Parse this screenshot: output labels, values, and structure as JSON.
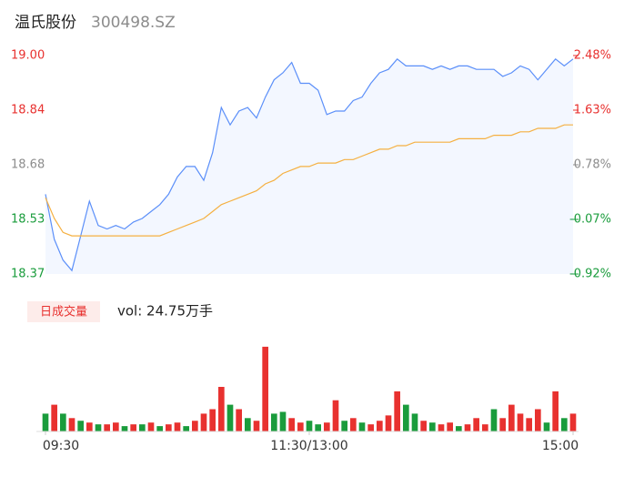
{
  "chart_data": [
    {
      "type": "line",
      "title": "温氏股份",
      "subtitle": "300498.SZ",
      "x": [
        0,
        4,
        8,
        12,
        16,
        20,
        24,
        28,
        32,
        36,
        40,
        44,
        48,
        52,
        56,
        60,
        64,
        68,
        72,
        76,
        80,
        84,
        88,
        92,
        96,
        100,
        104,
        108,
        112,
        116,
        120,
        124,
        128,
        132,
        136,
        140,
        144,
        148,
        152,
        156,
        160,
        164,
        168,
        172,
        176,
        180,
        184,
        188,
        192,
        196,
        200,
        204,
        208,
        212,
        216,
        220,
        224,
        228,
        232,
        236,
        240
      ],
      "xlim": [
        0,
        240
      ],
      "ylim": [
        18.37,
        19.0
      ],
      "yticks": [
        18.37,
        {
          "value": 18.5275,
          "label": "18.53"
        },
        {
          "value": 18.685,
          "label": "18.68"
        },
        {
          "value": 18.8425,
          "label": "18.84"
        },
        {
          "value": 19,
          "label": "19.00"
        }
      ],
      "ytick_colors": [
        "#1a9c3c",
        "#1a9c3c",
        "#8c8c8c",
        "#e8312f",
        "#e8312f"
      ],
      "y2lim": [
        -0.92,
        2.48
      ],
      "y2ticks": [
        {
          "value": -0.92,
          "label": "-0.92%"
        },
        {
          "value": -0.07,
          "label": "-0.07%"
        },
        {
          "value": 0.78,
          "label": "0.78%"
        },
        {
          "value": 1.63,
          "label": "1.63%"
        },
        {
          "value": 2.48,
          "label": "2.48%"
        }
      ],
      "grid": false,
      "series": [
        {
          "color": "#5b8ff9",
          "fill": true,
          "values": [
            18.6,
            18.47,
            18.41,
            18.38,
            18.48,
            18.58,
            18.51,
            18.5,
            18.51,
            18.5,
            18.52,
            18.53,
            18.55,
            18.57,
            18.6,
            18.65,
            18.68,
            18.68,
            18.64,
            18.72,
            18.85,
            18.8,
            18.84,
            18.85,
            18.82,
            18.88,
            18.93,
            18.95,
            18.98,
            18.92,
            18.92,
            18.9,
            18.83,
            18.84,
            18.84,
            18.87,
            18.88,
            18.92,
            18.95,
            18.96,
            18.99,
            18.97,
            18.97,
            18.97,
            18.96,
            18.97,
            18.96,
            18.97,
            18.97,
            18.96,
            18.96,
            18.96,
            18.94,
            18.95,
            18.97,
            18.96,
            18.93,
            18.96,
            18.99,
            18.97,
            18.99
          ]
        },
        {
          "color": "#f5b041",
          "fill": false,
          "values": [
            18.59,
            18.53,
            18.49,
            18.48,
            18.48,
            18.48,
            18.48,
            18.48,
            18.48,
            18.48,
            18.48,
            18.48,
            18.48,
            18.48,
            18.49,
            18.5,
            18.51,
            18.52,
            18.53,
            18.55,
            18.57,
            18.58,
            18.59,
            18.6,
            18.61,
            18.63,
            18.64,
            18.66,
            18.67,
            18.68,
            18.68,
            18.69,
            18.69,
            18.69,
            18.7,
            18.7,
            18.71,
            18.72,
            18.73,
            18.73,
            18.74,
            18.74,
            18.75,
            18.75,
            18.75,
            18.75,
            18.75,
            18.76,
            18.76,
            18.76,
            18.76,
            18.77,
            18.77,
            18.77,
            18.78,
            18.78,
            18.79,
            18.79,
            18.79,
            18.8,
            18.8
          ]
        }
      ]
    },
    {
      "type": "bar",
      "title": "日成交量",
      "subtitle": "vol: 24.75万手",
      "x": [
        0,
        4,
        8,
        12,
        16,
        20,
        24,
        28,
        32,
        36,
        40,
        44,
        48,
        52,
        56,
        60,
        64,
        68,
        72,
        76,
        80,
        84,
        88,
        92,
        96,
        100,
        104,
        108,
        112,
        116,
        120,
        124,
        128,
        132,
        136,
        140,
        144,
        148,
        152,
        156,
        160,
        164,
        168,
        172,
        176,
        180,
        184,
        188,
        192,
        196,
        200,
        204,
        208,
        212,
        216,
        220,
        224,
        228,
        232,
        236,
        240
      ],
      "xlim": [
        0,
        240
      ],
      "ylim": [
        0,
        100
      ],
      "xticks": [
        {
          "value": 0,
          "label": "09:30"
        },
        {
          "value": 120,
          "label": "11:30/13:00"
        },
        {
          "value": 240,
          "label": "15:00"
        }
      ],
      "values": [
        20,
        30,
        20,
        15,
        12,
        10,
        8,
        8,
        10,
        6,
        8,
        8,
        10,
        6,
        8,
        10,
        6,
        12,
        20,
        25,
        50,
        30,
        25,
        15,
        12,
        95,
        20,
        22,
        15,
        10,
        12,
        8,
        10,
        35,
        12,
        15,
        10,
        8,
        12,
        18,
        45,
        30,
        20,
        12,
        10,
        8,
        10,
        6,
        8,
        15,
        8,
        25,
        15,
        30,
        20,
        15,
        25,
        10,
        45,
        15,
        20
      ],
      "colors": [
        "#1a9c3c",
        "#e8312f",
        "#1a9c3c",
        "#e8312f",
        "#1a9c3c",
        "#e8312f",
        "#1a9c3c",
        "#e8312f",
        "#e8312f",
        "#1a9c3c",
        "#e8312f",
        "#1a9c3c",
        "#e8312f",
        "#1a9c3c",
        "#e8312f",
        "#e8312f",
        "#1a9c3c",
        "#e8312f",
        "#e8312f",
        "#e8312f",
        "#e8312f",
        "#1a9c3c",
        "#e8312f",
        "#1a9c3c",
        "#e8312f",
        "#e8312f",
        "#1a9c3c",
        "#1a9c3c",
        "#e8312f",
        "#e8312f",
        "#1a9c3c",
        "#1a9c3c",
        "#e8312f",
        "#e8312f",
        "#1a9c3c",
        "#e8312f",
        "#1a9c3c",
        "#e8312f",
        "#e8312f",
        "#e8312f",
        "#e8312f",
        "#1a9c3c",
        "#1a9c3c",
        "#e8312f",
        "#1a9c3c",
        "#e8312f",
        "#e8312f",
        "#1a9c3c",
        "#e8312f",
        "#e8312f",
        "#e8312f",
        "#1a9c3c",
        "#e8312f",
        "#e8312f",
        "#e8312f",
        "#e8312f",
        "#e8312f",
        "#1a9c3c",
        "#e8312f",
        "#1a9c3c",
        "#e8312f"
      ]
    }
  ]
}
